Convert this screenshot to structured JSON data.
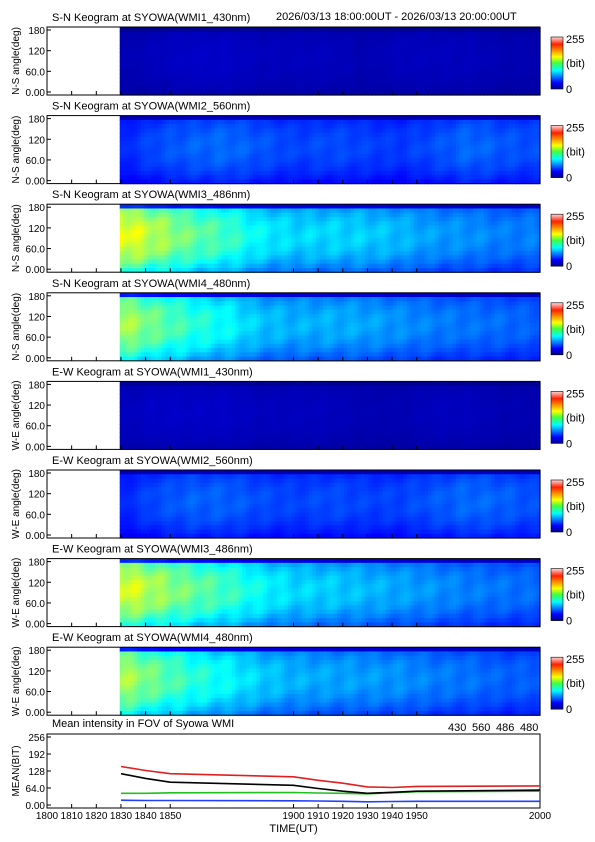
{
  "header": {
    "time_range": "2026/03/13 18:00:00UT - 2026/03/13 20:00:00UT"
  },
  "colors": {
    "430": "#2040ff",
    "560": "#20c020",
    "486": "#e02020",
    "480": "#000000"
  },
  "chart_data": [
    {
      "type": "heatmap",
      "title": "S-N Keogram at SYOWA(WMI1_430nm)",
      "ylabel": "N-S angle(deg)",
      "yticks": [
        "180",
        "120",
        "60.0",
        "0.00"
      ],
      "colorbar": {
        "max": "255",
        "unit": "(bit)",
        "min": "0"
      },
      "profile": [
        0.05,
        0.06,
        0.07,
        0.07,
        0.06,
        0.06,
        0.06,
        0.05,
        0.06,
        0.06,
        0.06,
        0.05,
        0.05
      ]
    },
    {
      "type": "heatmap",
      "title": "S-N Keogram at SYOWA(WMI2_560nm)",
      "ylabel": "N-S angle(deg)",
      "yticks": [
        "180",
        "120",
        "60.0",
        "0.00"
      ],
      "colorbar": {
        "max": "255",
        "unit": "(bit)",
        "min": "0"
      },
      "profile": [
        0.16,
        0.2,
        0.22,
        0.23,
        0.21,
        0.19,
        0.2,
        0.19,
        0.18,
        0.2,
        0.23,
        0.21,
        0.2
      ]
    },
    {
      "type": "heatmap",
      "title": "S-N Keogram at SYOWA(WMI3_486nm)",
      "ylabel": "N-S angle(deg)",
      "yticks": [
        "180",
        "120",
        "60.0",
        "0.00"
      ],
      "colorbar": {
        "max": "255",
        "unit": "(bit)",
        "min": "0"
      },
      "profile": [
        0.62,
        0.55,
        0.48,
        0.44,
        0.37,
        0.34,
        0.34,
        0.33,
        0.31,
        0.28,
        0.27,
        0.25,
        0.25
      ]
    },
    {
      "type": "heatmap",
      "title": "S-N Keogram at SYOWA(WMI4_480nm)",
      "ylabel": "N-S angle(deg)",
      "yticks": [
        "180",
        "120",
        "60.0",
        "0.00"
      ],
      "colorbar": {
        "max": "255",
        "unit": "(bit)",
        "min": "0"
      },
      "profile": [
        0.55,
        0.48,
        0.42,
        0.38,
        0.32,
        0.3,
        0.3,
        0.29,
        0.27,
        0.25,
        0.24,
        0.23,
        0.22
      ]
    },
    {
      "type": "heatmap",
      "title": "E-W Keogram at SYOWA(WMI1_430nm)",
      "ylabel": "W-E angle(deg)",
      "yticks": [
        "180",
        "120",
        "60.0",
        "0.00"
      ],
      "colorbar": {
        "max": "255",
        "unit": "(bit)",
        "min": "0"
      },
      "profile": [
        0.06,
        0.07,
        0.07,
        0.07,
        0.06,
        0.06,
        0.06,
        0.05,
        0.05,
        0.06,
        0.06,
        0.05,
        0.05
      ]
    },
    {
      "type": "heatmap",
      "title": "E-W Keogram at SYOWA(WMI2_560nm)",
      "ylabel": "W-E angle(deg)",
      "yticks": [
        "180",
        "120",
        "60.0",
        "0.00"
      ],
      "colorbar": {
        "max": "255",
        "unit": "(bit)",
        "min": "0"
      },
      "profile": [
        0.16,
        0.2,
        0.22,
        0.22,
        0.2,
        0.19,
        0.2,
        0.19,
        0.19,
        0.21,
        0.23,
        0.22,
        0.2
      ]
    },
    {
      "type": "heatmap",
      "title": "E-W Keogram at SYOWA(WMI3_486nm)",
      "ylabel": "W-E angle(deg)",
      "yticks": [
        "180",
        "120",
        "60.0",
        "0.00"
      ],
      "colorbar": {
        "max": "255",
        "unit": "(bit)",
        "min": "0"
      },
      "profile": [
        0.6,
        0.54,
        0.48,
        0.44,
        0.38,
        0.34,
        0.33,
        0.31,
        0.29,
        0.27,
        0.25,
        0.24,
        0.23
      ]
    },
    {
      "type": "heatmap",
      "title": "E-W Keogram at SYOWA(WMI4_480nm)",
      "ylabel": "W-E angle(deg)",
      "yticks": [
        "180",
        "120",
        "60.0",
        "0.00"
      ],
      "colorbar": {
        "max": "255",
        "unit": "(bit)",
        "min": "0"
      },
      "profile": [
        0.55,
        0.48,
        0.42,
        0.38,
        0.33,
        0.3,
        0.29,
        0.28,
        0.27,
        0.25,
        0.24,
        0.22,
        0.22
      ]
    },
    {
      "type": "line",
      "title": "Mean intensity in FOV of Syowa WMI",
      "ylabel": "MEAN(BIT)",
      "xlabel": "TIME(UT)",
      "ylim": [
        0,
        256
      ],
      "yticks": [
        "256",
        "192",
        "128",
        "64.0",
        "0.00"
      ],
      "xlim": [
        1800,
        2000
      ],
      "xticks": [
        "1800",
        "1810",
        "1820",
        "1830",
        "1840",
        "1850",
        "1900",
        "1910",
        "1920",
        "1930",
        "1940",
        "1950",
        "2000"
      ],
      "legend": [
        "430",
        "560",
        "486",
        "480"
      ],
      "series": [
        {
          "name": "430",
          "x": [
            1830,
            1840,
            1850,
            1900,
            1910,
            1920,
            1930,
            1940,
            1950,
            2000
          ],
          "values": [
            18,
            17,
            17,
            16,
            15,
            14,
            12,
            13,
            14,
            14
          ]
        },
        {
          "name": "560",
          "x": [
            1830,
            1840,
            1850,
            1900,
            1910,
            1920,
            1930,
            1940,
            1950,
            2000
          ],
          "values": [
            44,
            44,
            46,
            47,
            45,
            44,
            42,
            46,
            50,
            52
          ]
        },
        {
          "name": "486",
          "x": [
            1830,
            1840,
            1850,
            1900,
            1910,
            1920,
            1930,
            1940,
            1950,
            2000
          ],
          "values": [
            145,
            130,
            118,
            106,
            93,
            82,
            68,
            66,
            70,
            72
          ]
        },
        {
          "name": "480",
          "x": [
            1830,
            1840,
            1850,
            1900,
            1910,
            1920,
            1930,
            1940,
            1950,
            2000
          ],
          "values": [
            118,
            100,
            86,
            74,
            62,
            52,
            44,
            48,
            52,
            56
          ]
        }
      ]
    }
  ]
}
